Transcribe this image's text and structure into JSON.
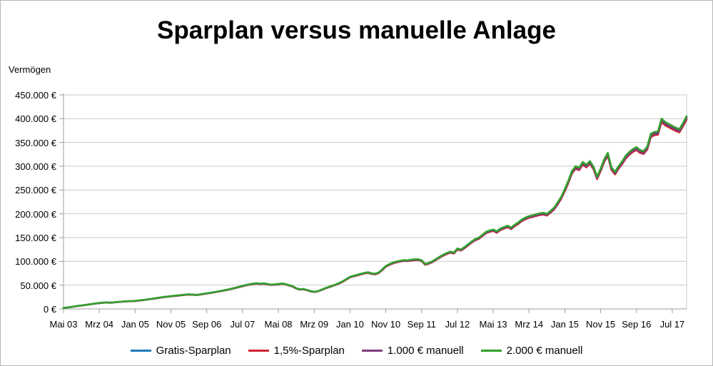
{
  "figure": {
    "title": "Sparplan versus manuelle Anlage",
    "y_axis_title": "Vermögen"
  },
  "chart_data": {
    "type": "line",
    "title": "Sparplan versus manuelle Anlage",
    "ylabel": "Vermögen",
    "xlabel": "",
    "ylim_eur": [
      0,
      450000
    ],
    "y_tick_step_eur": 50000,
    "y_tick_labels_bottom_to_top": [
      "0 €",
      "50.000 €",
      "100.000 €",
      "150.000 €",
      "200.000 €",
      "250.000 €",
      "300.000 €",
      "350.000 €",
      "400.000 €",
      "450.000 €"
    ],
    "x_tick_labels": [
      "Mai 03",
      "Mrz 04",
      "Jan 05",
      "Nov 05",
      "Sep 06",
      "Jul 07",
      "Mai 08",
      "Mrz 09",
      "Jan 10",
      "Nov 10",
      "Sep 11",
      "Jul 12",
      "Mai 13",
      "Mrz 14",
      "Jan 15",
      "Nov 15",
      "Sep 16",
      "Jul 17"
    ],
    "x_tick_interval_months": 10,
    "x_is_monthly_from": "Mai 03",
    "months_total": 175,
    "grid": "horizontal",
    "legend_position": "bottom",
    "axis_color": "#9c9c9c",
    "grid_color": "#c9c9c9",
    "base_series_keur": [
      2,
      3,
      4,
      5.2,
      6.3,
      7.2,
      8.2,
      9.4,
      10.5,
      11.6,
      12.4,
      13.2,
      13.6,
      13.2,
      13.8,
      14.5,
      15.2,
      15.8,
      16.3,
      16.4,
      17,
      17.8,
      18.7,
      19.6,
      20.6,
      21.7,
      22.9,
      24,
      25.2,
      25.9,
      26.8,
      27.7,
      28.4,
      29.3,
      30.1,
      30.7,
      30.2,
      29.6,
      30.4,
      31.6,
      32.8,
      34,
      35.3,
      36.6,
      38,
      39.5,
      41,
      42.7,
      44.5,
      46.6,
      48.6,
      50.4,
      52,
      53.2,
      54,
      53,
      53.8,
      52.4,
      51.2,
      51.8,
      52.3,
      53.6,
      52.1,
      50.2,
      47.8,
      43.5,
      41.2,
      42,
      39.8,
      37.6,
      36.2,
      37.4,
      40.2,
      43.5,
      46.2,
      48.8,
      51.5,
      54.6,
      58.2,
      63,
      67.5,
      69.8,
      71.6,
      73.8,
      75.6,
      77.2,
      74.8,
      73.9,
      76.5,
      83,
      90.5,
      94.2,
      97.5,
      99.8,
      101.2,
      102.8,
      102.2,
      103.4,
      104.2,
      104.6,
      102.5,
      94.5,
      96.8,
      100.2,
      104.8,
      109.5,
      113.8,
      117.5,
      120.4,
      118.6,
      127,
      125,
      130,
      136,
      142,
      147,
      150,
      156,
      162,
      165,
      167,
      163,
      169,
      172,
      175,
      171,
      177,
      182,
      188,
      192,
      195,
      197,
      199,
      201,
      202,
      200,
      206,
      213,
      224,
      236,
      252,
      270,
      290,
      300,
      297,
      309,
      303,
      311,
      299,
      278,
      295,
      315,
      328,
      298,
      288,
      300,
      310,
      322,
      330,
      336,
      340,
      334,
      332,
      341,
      368,
      372,
      373,
      400,
      393,
      389,
      385,
      381,
      378,
      391,
      405
    ],
    "series": [
      {
        "name": "Gratis-Sparplan",
        "color": "#1f7ab8",
        "relative_to_base": 0.996
      },
      {
        "name": "1,5%-Sparplan",
        "color": "#cf2430",
        "relative_to_base": 0.982
      },
      {
        "name": "1.000 € manuell",
        "color": "#7d3c7d",
        "relative_to_base": 0.99
      },
      {
        "name": "2.000 € manuell",
        "color": "#33a02c",
        "relative_to_base": 1.0
      }
    ]
  }
}
